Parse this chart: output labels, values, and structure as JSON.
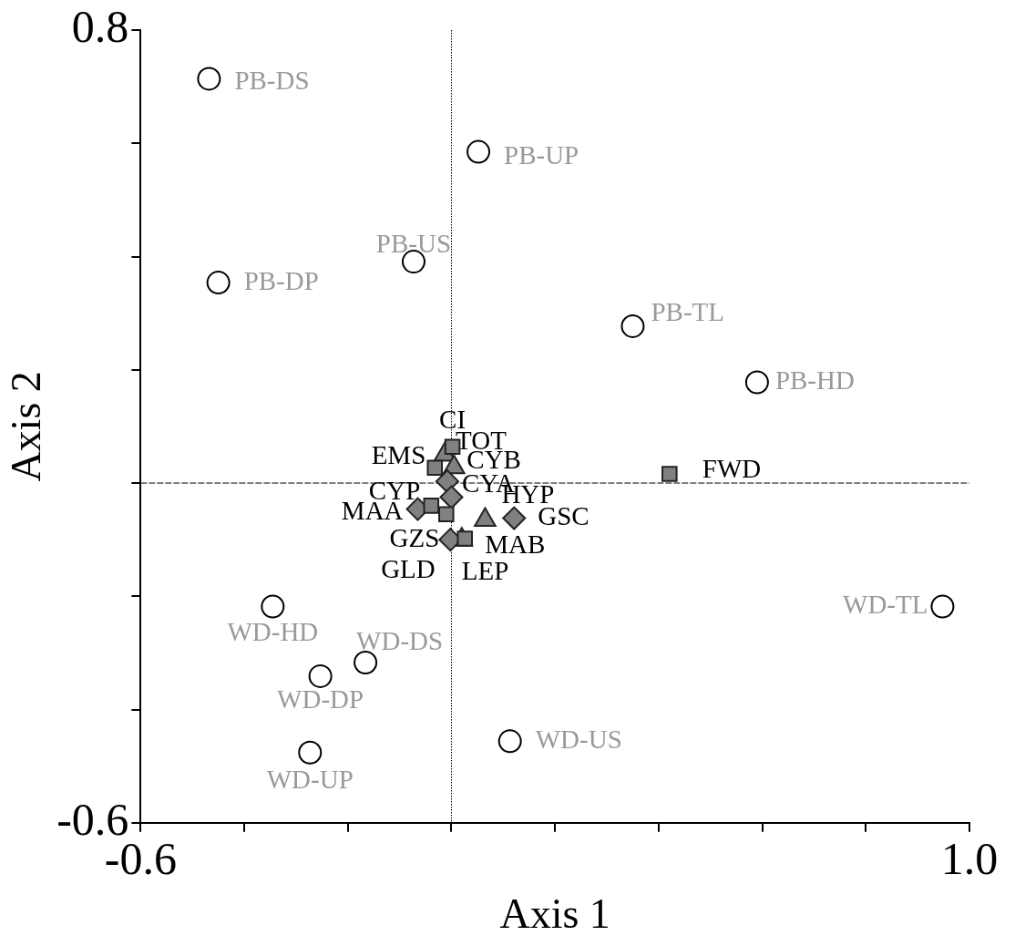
{
  "chart_data": {
    "type": "scatter",
    "xlabel": "Axis 1",
    "ylabel": "Axis 2",
    "xlim": [
      -0.6,
      1.0
    ],
    "ylim": [
      -0.6,
      0.8
    ],
    "xticks": [
      -0.6,
      {
        "value": -0.4,
        "label": null
      },
      {
        "value": -0.2,
        "label": null
      },
      {
        "value": 0,
        "label": null
      },
      {
        "value": 0.2,
        "label": null
      },
      {
        "value": 0.4,
        "label": null
      },
      {
        "value": 0.6,
        "label": null
      },
      {
        "value": 0.8,
        "label": null
      },
      {
        "value": 1.0,
        "label": "1.0"
      }
    ],
    "yticks": [
      -0.6,
      {
        "value": -0.4,
        "label": null
      },
      {
        "value": -0.2,
        "label": null
      },
      {
        "value": 0,
        "label": null
      },
      {
        "value": 0.2,
        "label": null
      },
      {
        "value": 0.4,
        "label": null
      },
      {
        "value": 0.6,
        "label": null
      },
      0.8
    ],
    "grid": false,
    "legend": false,
    "ref_lines": [
      {
        "axis": "x",
        "value": 0,
        "line_style": "dotted"
      },
      {
        "axis": "y",
        "value": 0,
        "line_style": "dashed"
      }
    ],
    "series": [
      {
        "color": "#000000",
        "marker": "circle",
        "x": [
          -0.468,
          0.052,
          -0.073,
          -0.45,
          0.35,
          0.59,
          0.948,
          -0.345,
          -0.166,
          -0.253,
          -0.273,
          0.113
        ],
        "values": [
          0.714,
          0.585,
          0.391,
          0.354,
          0.277,
          0.178,
          -0.218,
          -0.218,
          -0.317,
          -0.341,
          -0.476,
          -0.456
        ],
        "value_labels": [
          "PB-DS",
          "PB-UP",
          "PB-US",
          "PB-DP",
          "PB-TL",
          "PB-HD",
          "WD-TL",
          "WD-HD",
          "WD-DS",
          "WD-DP",
          "WD-UP",
          "WD-US"
        ]
      },
      {
        "color": "#808080",
        "marker": "triangle",
        "x": [
          -0.013,
          0.005,
          0.065,
          0.02
        ],
        "values": [
          0.05,
          0.028,
          -0.065,
          -0.1
        ],
        "value_labels": [
          "TOT",
          "CYB",
          "HYP",
          "LEP"
        ]
      },
      {
        "color": "#808080",
        "marker": "square",
        "x": [
          0.002,
          -0.032,
          0.421,
          -0.039,
          -0.01,
          0.026
        ],
        "values": [
          0.064,
          0.027,
          0.016,
          -0.04,
          -0.055,
          -0.098
        ],
        "value_labels": [
          "CI",
          "EMS",
          "FWD",
          "CYP",
          "GLD",
          "MAB"
        ]
      },
      {
        "color": "#808080",
        "marker": "diamond",
        "x": [
          -0.008,
          0,
          -0.065,
          0.121,
          -0.002
        ],
        "values": [
          0.003,
          -0.025,
          -0.046,
          -0.062,
          -0.1
        ],
        "value_labels": [
          "CYA",
          null,
          "MAA",
          "GSC",
          "GZS"
        ]
      }
    ]
  }
}
